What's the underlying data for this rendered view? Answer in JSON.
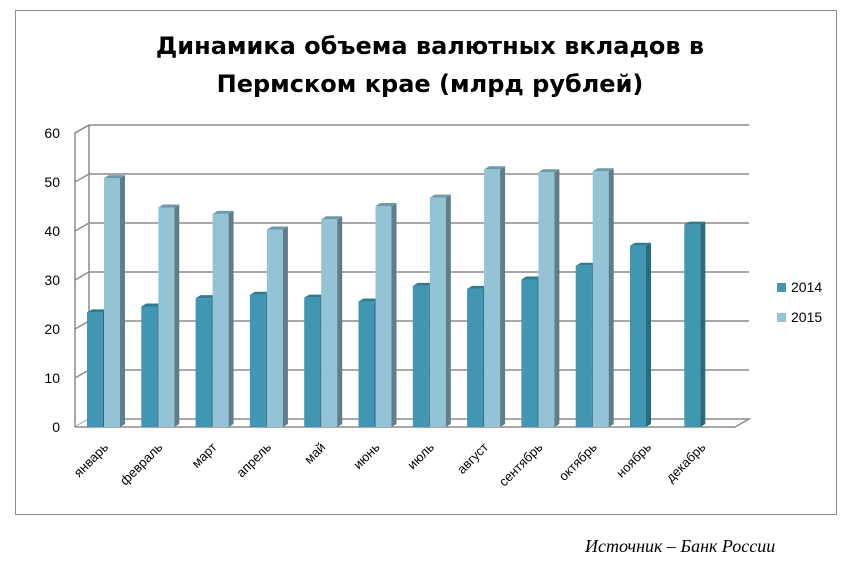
{
  "chart_data": {
    "type": "bar",
    "title_lines": [
      "Динамика объема валютных вкладов в",
      "Пермском крае (млрд рублей)"
    ],
    "categories": [
      "январь",
      "февраль",
      "март",
      "апрель",
      "май",
      "июнь",
      "июль",
      "август",
      "сентябрь",
      "октябрь",
      "ноябрь",
      "декабрь"
    ],
    "series": [
      {
        "name": "2014",
        "color": "#4197b1",
        "values": [
          23.4,
          24.6,
          26.3,
          27.0,
          26.4,
          25.6,
          28.8,
          28.2,
          30.1,
          32.9,
          37.0,
          41.3
        ]
      },
      {
        "name": "2015",
        "color": "#93c3d5",
        "values": [
          50.8,
          44.8,
          43.5,
          40.3,
          42.4,
          45.1,
          46.8,
          52.6,
          52.0,
          52.2,
          null,
          null
        ]
      }
    ],
    "yticks": [
      "0",
      "10",
      "20",
      "30",
      "40",
      "50",
      "60"
    ],
    "ylim": [
      0,
      60
    ],
    "grid": true,
    "legend_position": "right",
    "style": "3d-column"
  },
  "source": "Источник – Банк России"
}
